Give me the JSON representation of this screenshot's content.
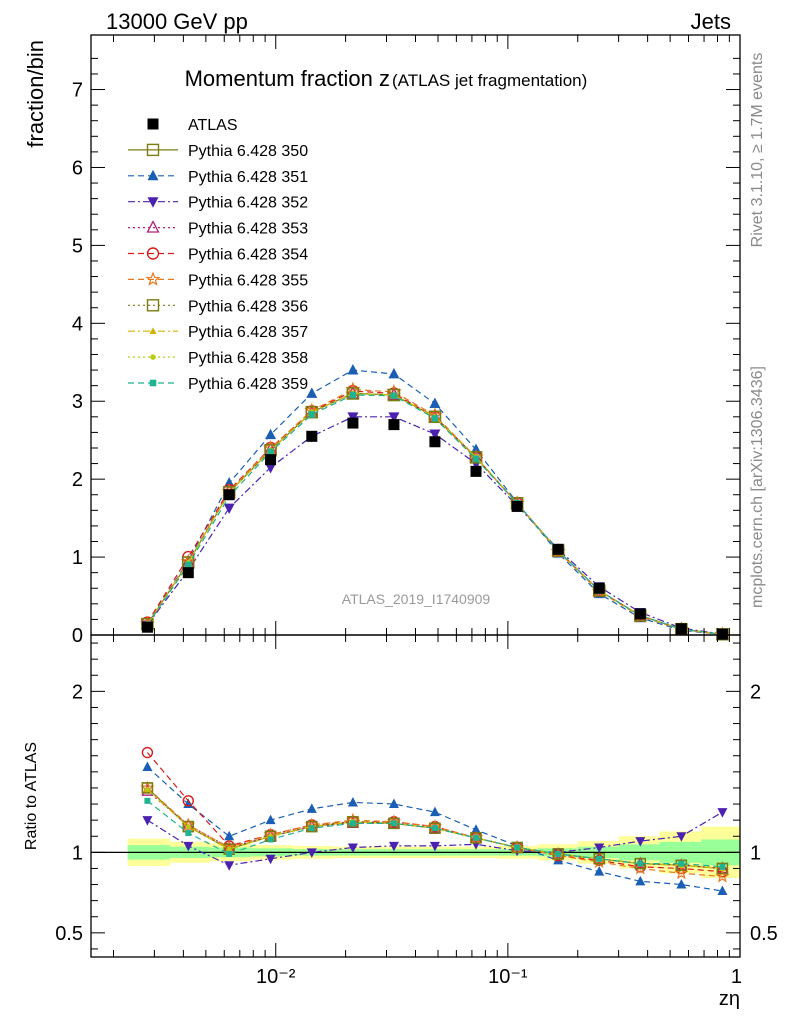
{
  "header": {
    "left": "13000 GeV pp",
    "right": "Jets"
  },
  "side_labels": {
    "rivet": "Rivet 3.1.10, ≥ 1.7M events",
    "mcplots": "mcplots.cern.ch [arXiv:1306.3436]"
  },
  "chart_data": [
    {
      "type": "scatter",
      "panel": "main",
      "title_main": "Momentum fraction z",
      "title_sub": "(ATLAS jet fragmentation)",
      "ylabel": "fraction/bin",
      "watermark": "ATLAS_2019_I1740909",
      "xscale": "log",
      "xlim": [
        0.0016,
        1.0
      ],
      "ylim": [
        0,
        7.7
      ],
      "yticks": [
        0,
        1,
        2,
        3,
        4,
        5,
        6,
        7
      ],
      "legend_position": "top-left",
      "x": [
        0.0028,
        0.0042,
        0.0063,
        0.0095,
        0.0143,
        0.0215,
        0.0323,
        0.0485,
        0.0729,
        0.1096,
        0.1647,
        0.2475,
        0.372,
        0.559,
        0.84
      ],
      "series": [
        {
          "name": "ATLAS",
          "style": "data",
          "color": "#000000",
          "marker": "square-filled",
          "dash": "none",
          "values": [
            0.1,
            0.8,
            1.8,
            2.25,
            2.55,
            2.72,
            2.7,
            2.48,
            2.1,
            1.65,
            1.1,
            0.6,
            0.27,
            0.08,
            0.01
          ]
        },
        {
          "name": "Pythia 6.428 350",
          "color": "#7c7c10",
          "marker": "square-open",
          "dash": "solid",
          "values": [
            0.14,
            0.93,
            1.83,
            2.37,
            2.86,
            3.1,
            3.08,
            2.8,
            2.28,
            1.69,
            1.08,
            0.57,
            0.25,
            0.075,
            0.009
          ]
        },
        {
          "name": "Pythia 6.428 351",
          "color": "#1a5fb4",
          "marker": "triangle-up",
          "dash": "dashed",
          "values": [
            0.15,
            0.95,
            1.95,
            2.57,
            3.1,
            3.4,
            3.35,
            2.97,
            2.38,
            1.7,
            1.05,
            0.53,
            0.22,
            0.06,
            0.0075
          ]
        },
        {
          "name": "Pythia 6.428 352",
          "color": "#4b22b0",
          "marker": "triangle-down",
          "dash": "dashdot",
          "values": [
            0.13,
            0.83,
            1.63,
            2.15,
            2.55,
            2.8,
            2.8,
            2.58,
            2.2,
            1.66,
            1.1,
            0.62,
            0.29,
            0.088,
            0.012
          ]
        },
        {
          "name": "Pythia 6.428 353",
          "color": "#b0207a",
          "marker": "triangle-open",
          "dash": "dotted",
          "values": [
            0.14,
            0.94,
            1.85,
            2.38,
            2.85,
            3.1,
            3.08,
            2.79,
            2.27,
            1.69,
            1.08,
            0.57,
            0.25,
            0.075,
            0.009
          ]
        },
        {
          "name": "Pythia 6.428 354",
          "color": "#d61c1c",
          "marker": "circle-open",
          "dash": "dashed",
          "values": [
            0.16,
            1.0,
            1.86,
            2.4,
            2.87,
            3.13,
            3.1,
            2.8,
            2.28,
            1.69,
            1.08,
            0.57,
            0.25,
            0.072,
            0.009
          ]
        },
        {
          "name": "Pythia 6.428 355",
          "color": "#e8781e",
          "marker": "star-open",
          "dash": "dashed",
          "values": [
            0.14,
            0.94,
            1.84,
            2.4,
            2.88,
            3.15,
            3.12,
            2.82,
            2.28,
            1.69,
            1.07,
            0.56,
            0.24,
            0.07,
            0.0085
          ]
        },
        {
          "name": "Pythia 6.428 356",
          "color": "#7c7c10",
          "marker": "square-open",
          "dash": "dotted",
          "values": [
            0.14,
            0.93,
            1.83,
            2.37,
            2.86,
            3.1,
            3.08,
            2.8,
            2.28,
            1.69,
            1.08,
            0.57,
            0.25,
            0.075,
            0.009
          ]
        },
        {
          "name": "Pythia 6.428 357",
          "color": "#d4b300",
          "marker": "tri-small",
          "dash": "dashdot",
          "values": [
            0.14,
            0.93,
            1.83,
            2.37,
            2.86,
            3.1,
            3.08,
            2.8,
            2.28,
            1.69,
            1.08,
            0.57,
            0.25,
            0.075,
            0.009
          ]
        },
        {
          "name": "Pythia 6.428 358",
          "color": "#b6cc10",
          "marker": "dot",
          "dash": "dotted",
          "values": [
            0.14,
            0.93,
            1.83,
            2.37,
            2.86,
            3.1,
            3.08,
            2.8,
            2.28,
            1.69,
            1.08,
            0.57,
            0.25,
            0.075,
            0.009
          ]
        },
        {
          "name": "Pythia 6.428 359",
          "color": "#1fb390",
          "marker": "square-small",
          "dash": "dashed",
          "values": [
            0.13,
            0.9,
            1.78,
            2.35,
            2.83,
            3.08,
            3.07,
            2.78,
            2.26,
            1.69,
            1.08,
            0.57,
            0.25,
            0.075,
            0.009
          ]
        }
      ]
    },
    {
      "type": "scatter",
      "panel": "ratio",
      "ylabel": "Ratio to ATLAS",
      "xlabel": "zη",
      "xscale": "log",
      "xlim": [
        0.0016,
        1.0
      ],
      "ylim": [
        0.35,
        2.35
      ],
      "yticks": [
        0.5,
        1,
        2
      ],
      "ytick_labels": [
        "0.5",
        "1",
        "2"
      ],
      "xticks": [
        0.01,
        0.1,
        1
      ],
      "xtick_labels": [
        "10⁻²",
        "10⁻¹",
        "1"
      ],
      "x": [
        0.0028,
        0.0042,
        0.0063,
        0.0095,
        0.0143,
        0.0215,
        0.0323,
        0.0485,
        0.0729,
        0.1096,
        0.1647,
        0.2475,
        0.372,
        0.559,
        0.84
      ],
      "band_edges": [
        0.0023,
        0.0035,
        0.0052,
        0.0078,
        0.0118,
        0.0177,
        0.0266,
        0.04,
        0.06,
        0.09,
        0.135,
        0.2,
        0.3,
        0.45,
        0.68,
        1.0
      ],
      "band_yellow": [
        0.085,
        0.065,
        0.055,
        0.045,
        0.04,
        0.035,
        0.035,
        0.035,
        0.035,
        0.04,
        0.05,
        0.07,
        0.1,
        0.13,
        0.16
      ],
      "band_green": [
        0.045,
        0.035,
        0.03,
        0.025,
        0.02,
        0.02,
        0.02,
        0.02,
        0.02,
        0.02,
        0.025,
        0.035,
        0.05,
        0.065,
        0.08
      ],
      "series": [
        {
          "name": "Pythia 6.428 350",
          "color": "#7c7c10",
          "marker": "square-open",
          "dash": "solid",
          "values": [
            1.4,
            1.16,
            1.02,
            1.1,
            1.16,
            1.19,
            1.18,
            1.15,
            1.09,
            1.03,
            0.99,
            0.96,
            0.93,
            0.92,
            0.9
          ]
        },
        {
          "name": "Pythia 6.428 351",
          "color": "#1a5fb4",
          "marker": "triangle-up",
          "dash": "dashed",
          "values": [
            1.53,
            1.3,
            1.1,
            1.2,
            1.27,
            1.31,
            1.3,
            1.25,
            1.14,
            1.04,
            0.95,
            0.88,
            0.82,
            0.8,
            0.76
          ]
        },
        {
          "name": "Pythia 6.428 352",
          "color": "#4b22b0",
          "marker": "triangle-down",
          "dash": "dashdot",
          "values": [
            1.2,
            1.04,
            0.92,
            0.96,
            1.0,
            1.03,
            1.04,
            1.04,
            1.05,
            1.01,
            1.0,
            1.03,
            1.07,
            1.1,
            1.25
          ]
        },
        {
          "name": "Pythia 6.428 353",
          "color": "#b0207a",
          "marker": "triangle-open",
          "dash": "dotted",
          "values": [
            1.38,
            1.17,
            1.03,
            1.1,
            1.16,
            1.18,
            1.18,
            1.15,
            1.09,
            1.03,
            0.99,
            0.96,
            0.93,
            0.92,
            0.9
          ]
        },
        {
          "name": "Pythia 6.428 354",
          "color": "#d61c1c",
          "marker": "circle-open",
          "dash": "dashed",
          "values": [
            1.62,
            1.32,
            1.04,
            1.11,
            1.17,
            1.19,
            1.19,
            1.16,
            1.09,
            1.03,
            0.98,
            0.95,
            0.91,
            0.9,
            0.88
          ]
        },
        {
          "name": "Pythia 6.428 355",
          "color": "#e8781e",
          "marker": "star-open",
          "dash": "dashed",
          "values": [
            1.4,
            1.17,
            1.03,
            1.11,
            1.17,
            1.2,
            1.19,
            1.16,
            1.09,
            1.03,
            0.98,
            0.94,
            0.9,
            0.87,
            0.85
          ]
        },
        {
          "name": "Pythia 6.428 356",
          "color": "#7c7c10",
          "marker": "square-open",
          "dash": "dotted",
          "values": [
            1.4,
            1.16,
            1.02,
            1.1,
            1.16,
            1.19,
            1.18,
            1.15,
            1.09,
            1.03,
            0.99,
            0.96,
            0.93,
            0.92,
            0.9
          ]
        },
        {
          "name": "Pythia 6.428 357",
          "color": "#d4b300",
          "marker": "tri-small",
          "dash": "dashdot",
          "values": [
            1.39,
            1.16,
            1.02,
            1.1,
            1.16,
            1.19,
            1.18,
            1.15,
            1.09,
            1.03,
            0.99,
            0.96,
            0.93,
            0.92,
            0.9
          ]
        },
        {
          "name": "Pythia 6.428 358",
          "color": "#b6cc10",
          "marker": "dot",
          "dash": "dotted",
          "values": [
            1.39,
            1.16,
            1.02,
            1.1,
            1.16,
            1.19,
            1.18,
            1.15,
            1.09,
            1.03,
            0.99,
            0.96,
            0.93,
            0.92,
            0.9
          ]
        },
        {
          "name": "Pythia 6.428 359",
          "color": "#1fb390",
          "marker": "square-small",
          "dash": "dashed",
          "values": [
            1.32,
            1.12,
            0.99,
            1.08,
            1.15,
            1.18,
            1.18,
            1.15,
            1.09,
            1.03,
            0.99,
            0.96,
            0.93,
            0.93,
            0.91
          ]
        }
      ]
    }
  ]
}
